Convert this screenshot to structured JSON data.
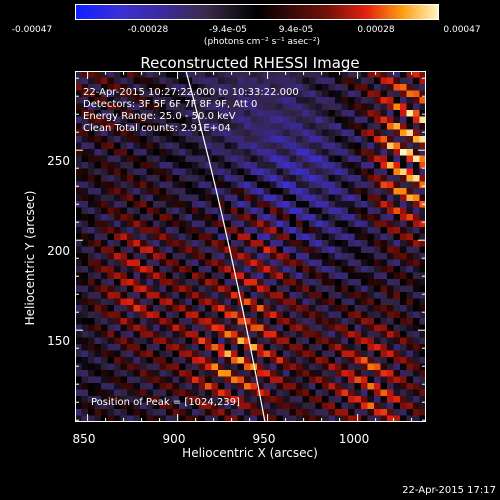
{
  "chart_data": {
    "type": "heatmap",
    "title": "Reconstructed RHESSI Image",
    "xlabel": "Heliocentric X (arcsec)",
    "ylabel": "Heliocentric Y (arcsec)",
    "xlim": [
      843,
      1038
    ],
    "ylim": [
      99,
      294
    ],
    "x_ticks": [
      850,
      900,
      950,
      1000
    ],
    "y_ticks": [
      150,
      200,
      250
    ],
    "colorbar": {
      "ticks": [
        "-0.00047",
        "-0.00028",
        "-9.4e-05",
        "9.4e-05",
        "0.00028",
        "0.00047"
      ],
      "units": "(photons cm⁻² s⁻¹ asec⁻²)",
      "range": [
        -0.00047,
        0.00047
      ]
    },
    "annotations": {
      "time_range": "22-Apr-2015 10:27:22.000 to 10:33:22.000",
      "detectors": "Detectors: 3F 5F 6F 7F 8F 9F, Att 0",
      "energy": "Energy Range: 25.0 - 50.0 keV",
      "clean": "Clean     Total counts: 2.91E+04",
      "peak": "Position of Peak = [1024,239]"
    },
    "peak": [
      1024,
      239
    ]
  },
  "footer": {
    "timestamp": "22-Apr-2015 17:17"
  }
}
